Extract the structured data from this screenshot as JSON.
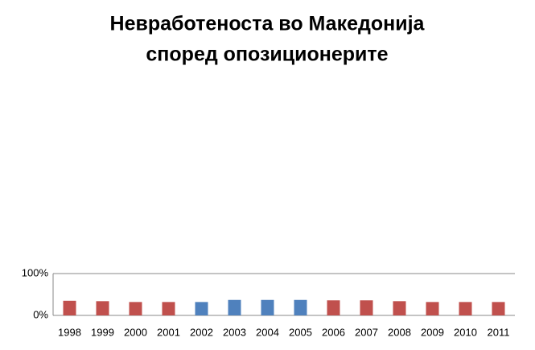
{
  "chart_data": {
    "type": "bar",
    "title": [
      "Невработеноста во Македонија",
      "според опозиционерите"
    ],
    "categories": [
      "1998",
      "1999",
      "2000",
      "2001",
      "2002",
      "2003",
      "2004",
      "2005",
      "2006",
      "2007",
      "2008",
      "2009",
      "2010",
      "2011"
    ],
    "values": [
      35,
      34,
      32,
      32,
      32,
      37,
      37,
      37,
      36,
      36,
      34,
      32,
      32,
      32
    ],
    "colors": [
      "#c0504d",
      "#c0504d",
      "#c0504d",
      "#c0504d",
      "#4f81bd",
      "#4f81bd",
      "#4f81bd",
      "#4f81bd",
      "#c0504d",
      "#c0504d",
      "#c0504d",
      "#c0504d",
      "#c0504d",
      "#c0504d"
    ],
    "ylim": [
      0,
      100
    ],
    "yticks": [
      {
        "value": 0,
        "label": "0%"
      },
      {
        "value": 100,
        "label": "100%"
      }
    ],
    "grid": true
  }
}
